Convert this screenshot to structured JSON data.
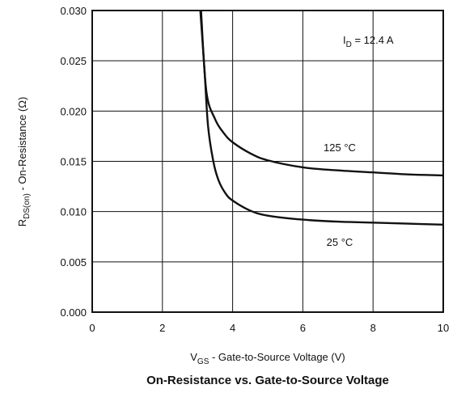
{
  "chart_data": {
    "type": "line",
    "title": "On-Resistance vs. Gate-to-Source Voltage",
    "xlabel": {
      "main": "V",
      "sub": "GS",
      "rest": " - Gate-to-Source Voltage (V)"
    },
    "ylabel": {
      "main": "R",
      "sub": "DS(on)",
      "rest": " - On-Resistance (Ω)"
    },
    "xlim": [
      0,
      10
    ],
    "ylim": [
      0,
      0.03
    ],
    "x_ticks": [
      0,
      2,
      4,
      6,
      8,
      10
    ],
    "x_tick_labels": [
      "0",
      "2",
      "4",
      "6",
      "8",
      "10"
    ],
    "y_ticks": [
      0,
      0.005,
      0.01,
      0.015,
      0.02,
      0.025,
      0.03
    ],
    "y_tick_labels": [
      "0.000",
      "0.005",
      "0.010",
      "0.015",
      "0.020",
      "0.025",
      "0.030"
    ],
    "grid": true,
    "annotation": {
      "main": "I",
      "sub": "D",
      "rest": " = 12.4 A"
    },
    "series": [
      {
        "name": "125 °C",
        "x": [
          3.1,
          3.25,
          3.5,
          3.75,
          4.0,
          4.5,
          5.0,
          6.0,
          7.0,
          8.0,
          9.0,
          10.0
        ],
        "y": [
          0.03,
          0.022,
          0.0192,
          0.0178,
          0.0169,
          0.0158,
          0.0151,
          0.0144,
          0.0141,
          0.0139,
          0.0137,
          0.0136
        ]
      },
      {
        "name": "25 °C",
        "x": [
          3.08,
          3.2,
          3.3,
          3.45,
          3.6,
          3.8,
          4.0,
          4.5,
          5.0,
          6.0,
          7.0,
          8.0,
          9.0,
          10.0
        ],
        "y": [
          0.03,
          0.024,
          0.0185,
          0.015,
          0.0131,
          0.0118,
          0.0111,
          0.0101,
          0.0096,
          0.0092,
          0.009,
          0.0089,
          0.0088,
          0.0087
        ]
      }
    ]
  }
}
